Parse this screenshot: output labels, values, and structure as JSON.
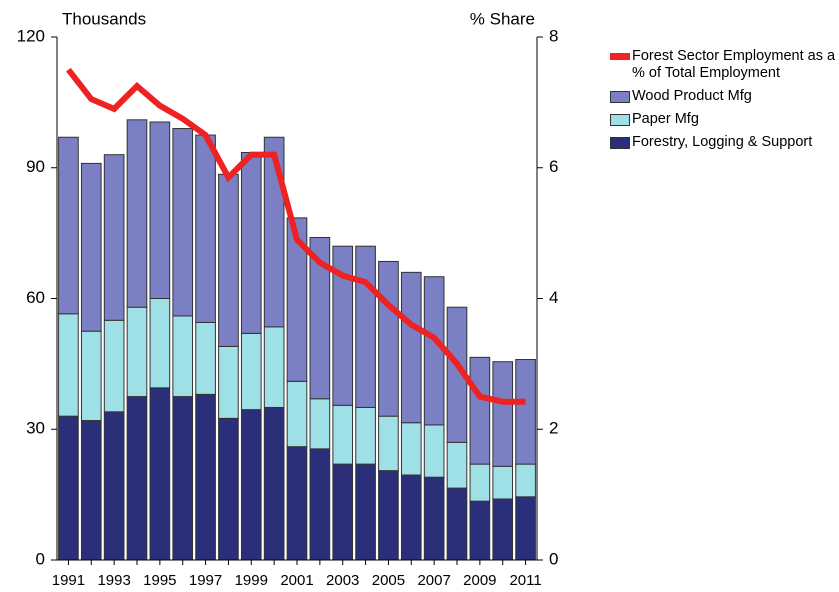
{
  "chart_data": {
    "type": "bar",
    "stacked": true,
    "ylabel": "Thousands",
    "y2label": "% Share",
    "categories": [
      "1991",
      null,
      "1993",
      null,
      "1995",
      null,
      "1997",
      null,
      "1999",
      null,
      "2001",
      null,
      "2003",
      null,
      "2005",
      null,
      "2007",
      null,
      "2009",
      null,
      "2011"
    ],
    "series": [
      {
        "name": "Forestry, Logging & Support",
        "color": "#2b2f7a",
        "values": [
          33,
          32,
          34,
          37.5,
          39.5,
          37.5,
          38,
          32.5,
          34.5,
          35,
          26,
          25.5,
          22,
          22,
          20.5,
          19.5,
          19,
          16.5,
          13.5,
          14,
          14.5
        ]
      },
      {
        "name": "Paper Mfg",
        "color": "#9fdfe6",
        "values": [
          23.5,
          20.5,
          21,
          20.5,
          20.5,
          18.5,
          16.5,
          16.5,
          17.5,
          18.5,
          15,
          11.5,
          13.5,
          13,
          12.5,
          12,
          12,
          10.5,
          8.5,
          7.5,
          7.5
        ]
      },
      {
        "name": "Wood Product Mfg",
        "color": "#7b7fc4",
        "values": [
          40.5,
          38.5,
          38,
          43,
          40.5,
          43,
          43,
          39.5,
          41.5,
          43.5,
          37.5,
          37,
          36.5,
          37,
          35.5,
          34.5,
          34,
          31,
          24.5,
          24,
          24
        ]
      },
      {
        "name": "Forest Sector Employment as a % of Total Employment",
        "color": "#ee2222",
        "type": "line",
        "axis": "y2",
        "values": [
          7.5,
          7.05,
          6.9,
          7.25,
          6.95,
          6.75,
          6.5,
          5.85,
          6.2,
          6.2,
          4.9,
          4.55,
          4.35,
          4.25,
          3.9,
          3.6,
          3.4,
          3.0,
          2.5,
          2.42,
          2.42
        ]
      }
    ],
    "ylim": [
      0,
      120
    ],
    "yticks": [
      0,
      30,
      60,
      90,
      120
    ],
    "y2lim": [
      0,
      8
    ],
    "y2ticks": [
      0,
      2,
      4,
      6,
      8
    ],
    "grid": false,
    "legend": "right"
  }
}
